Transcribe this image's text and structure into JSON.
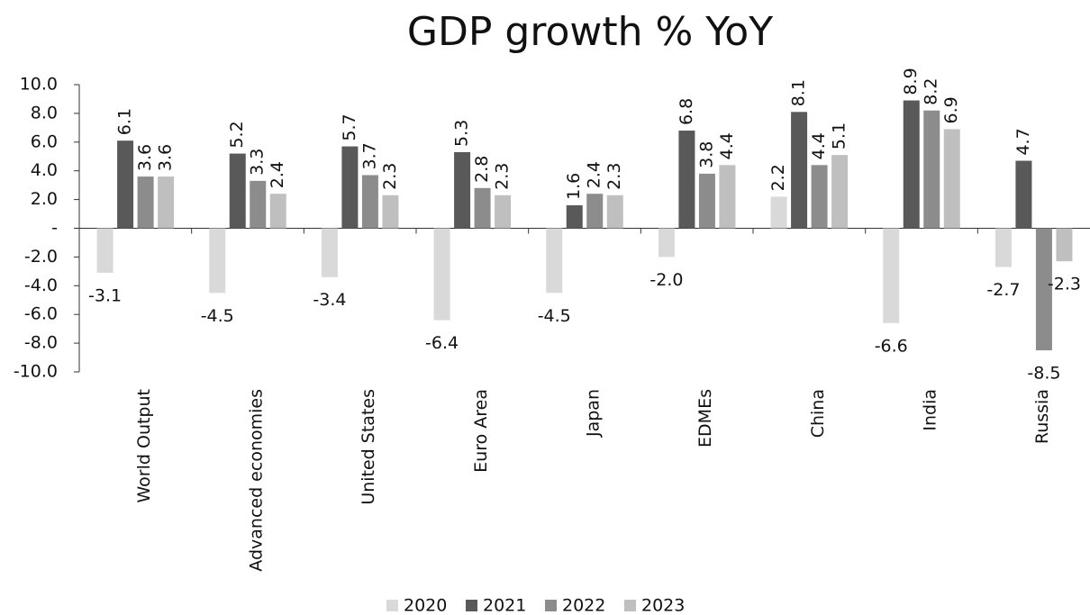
{
  "chart_data": {
    "type": "bar",
    "title": "GDP growth % YoY",
    "categories": [
      "World Output",
      "Advanced economies",
      "United States",
      "Euro Area",
      "Japan",
      "EDMEs",
      "China",
      "India",
      "Russia"
    ],
    "series": [
      {
        "name": "2020",
        "color": "#d9d9d9",
        "values": [
          -3.1,
          -4.5,
          -3.4,
          -6.4,
          -4.5,
          -2.0,
          2.2,
          -6.6,
          -2.7
        ],
        "value_labels": [
          "-3.1",
          "-4.5",
          "-3.4",
          "-6.4",
          "-4.5",
          "-2.0",
          "2.2",
          "-6.6",
          "-2.7"
        ]
      },
      {
        "name": "2021",
        "color": "#595959",
        "values": [
          6.1,
          5.2,
          5.7,
          5.3,
          1.6,
          6.8,
          8.1,
          8.9,
          4.7
        ],
        "value_labels": [
          "6.1",
          "5.2",
          "5.7",
          "5.3",
          "1.6",
          "6.8",
          "8.1",
          "8.9",
          "4.7"
        ]
      },
      {
        "name": "2022",
        "color": "#8c8c8c",
        "values": [
          3.6,
          3.3,
          3.7,
          2.8,
          2.4,
          3.8,
          4.4,
          8.2,
          -8.5
        ],
        "value_labels": [
          "3.6",
          "3.3",
          "3.7",
          "2.8",
          "2.4",
          "3.8",
          "4.4",
          "8.2",
          "-8.5"
        ]
      },
      {
        "name": "2023",
        "color": "#bfbfbf",
        "values": [
          3.6,
          2.4,
          2.3,
          2.3,
          2.3,
          4.4,
          5.1,
          6.9,
          -2.3
        ],
        "value_labels": [
          "3.6",
          "2.4",
          "2.3",
          "2.3",
          "2.3",
          "4.4",
          "5.1",
          "6.9",
          "-2.3"
        ]
      }
    ],
    "ylim": [
      -10,
      10
    ],
    "yticks": [
      {
        "value": 10,
        "label": "10.0"
      },
      {
        "value": 8,
        "label": "8.0"
      },
      {
        "value": 6,
        "label": "6.0"
      },
      {
        "value": 4,
        "label": "4.0"
      },
      {
        "value": 2,
        "label": "2.0"
      },
      {
        "value": 0,
        "label": "-"
      },
      {
        "value": -2,
        "label": "-2.0"
      },
      {
        "value": -4,
        "label": "-4.0"
      },
      {
        "value": -6,
        "label": "-6.0"
      },
      {
        "value": -8,
        "label": "-8.0"
      },
      {
        "value": -10,
        "label": "-10.0"
      }
    ],
    "legend": "bottom"
  }
}
